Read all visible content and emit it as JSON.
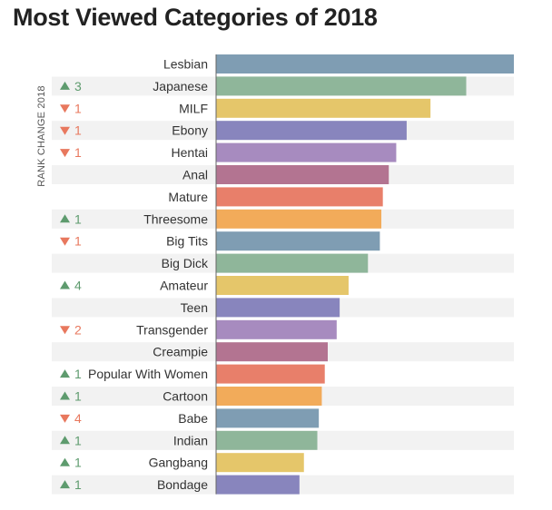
{
  "chart_data": {
    "type": "bar",
    "orientation": "horizontal",
    "title": "Most Viewed Categories of 2018",
    "ylabel": "RANK CHANGE 2018",
    "xlabel": "",
    "grid": false,
    "categories": [
      "Lesbian",
      "Japanese",
      "MILF",
      "Ebony",
      "Hentai",
      "Anal",
      "Mature",
      "Threesome",
      "Big Tits",
      "Big Dick",
      "Amateur",
      "Teen",
      "Transgender",
      "Creampie",
      "Popular With Women",
      "Cartoon",
      "Babe",
      "Indian",
      "Gangbang",
      "Bondage"
    ],
    "values": [
      100,
      84,
      72,
      64,
      60.5,
      58,
      56,
      55.5,
      55,
      51,
      44.5,
      41.5,
      40.5,
      37.5,
      36.5,
      35.5,
      34.5,
      34,
      29.5,
      28
    ],
    "rank_change": [
      {
        "dir": "",
        "value": ""
      },
      {
        "dir": "up",
        "value": "3"
      },
      {
        "dir": "down",
        "value": "1"
      },
      {
        "dir": "down",
        "value": "1"
      },
      {
        "dir": "down",
        "value": "1"
      },
      {
        "dir": "",
        "value": ""
      },
      {
        "dir": "",
        "value": ""
      },
      {
        "dir": "up",
        "value": "1"
      },
      {
        "dir": "down",
        "value": "1"
      },
      {
        "dir": "",
        "value": ""
      },
      {
        "dir": "up",
        "value": "4"
      },
      {
        "dir": "",
        "value": ""
      },
      {
        "dir": "down",
        "value": "2"
      },
      {
        "dir": "",
        "value": ""
      },
      {
        "dir": "up",
        "value": "1"
      },
      {
        "dir": "up",
        "value": "1"
      },
      {
        "dir": "down",
        "value": "4"
      },
      {
        "dir": "up",
        "value": "1"
      },
      {
        "dir": "up",
        "value": "1"
      },
      {
        "dir": "up",
        "value": "1"
      }
    ],
    "bar_colors": [
      "#7f9db3",
      "#8fb69a",
      "#e5c66a",
      "#8885bd",
      "#a78bbf",
      "#b37491",
      "#e87f6a",
      "#f2ab5a"
    ],
    "up_color": "#5e9b6e",
    "down_color": "#e8785e",
    "xlim": [
      0,
      100
    ]
  }
}
